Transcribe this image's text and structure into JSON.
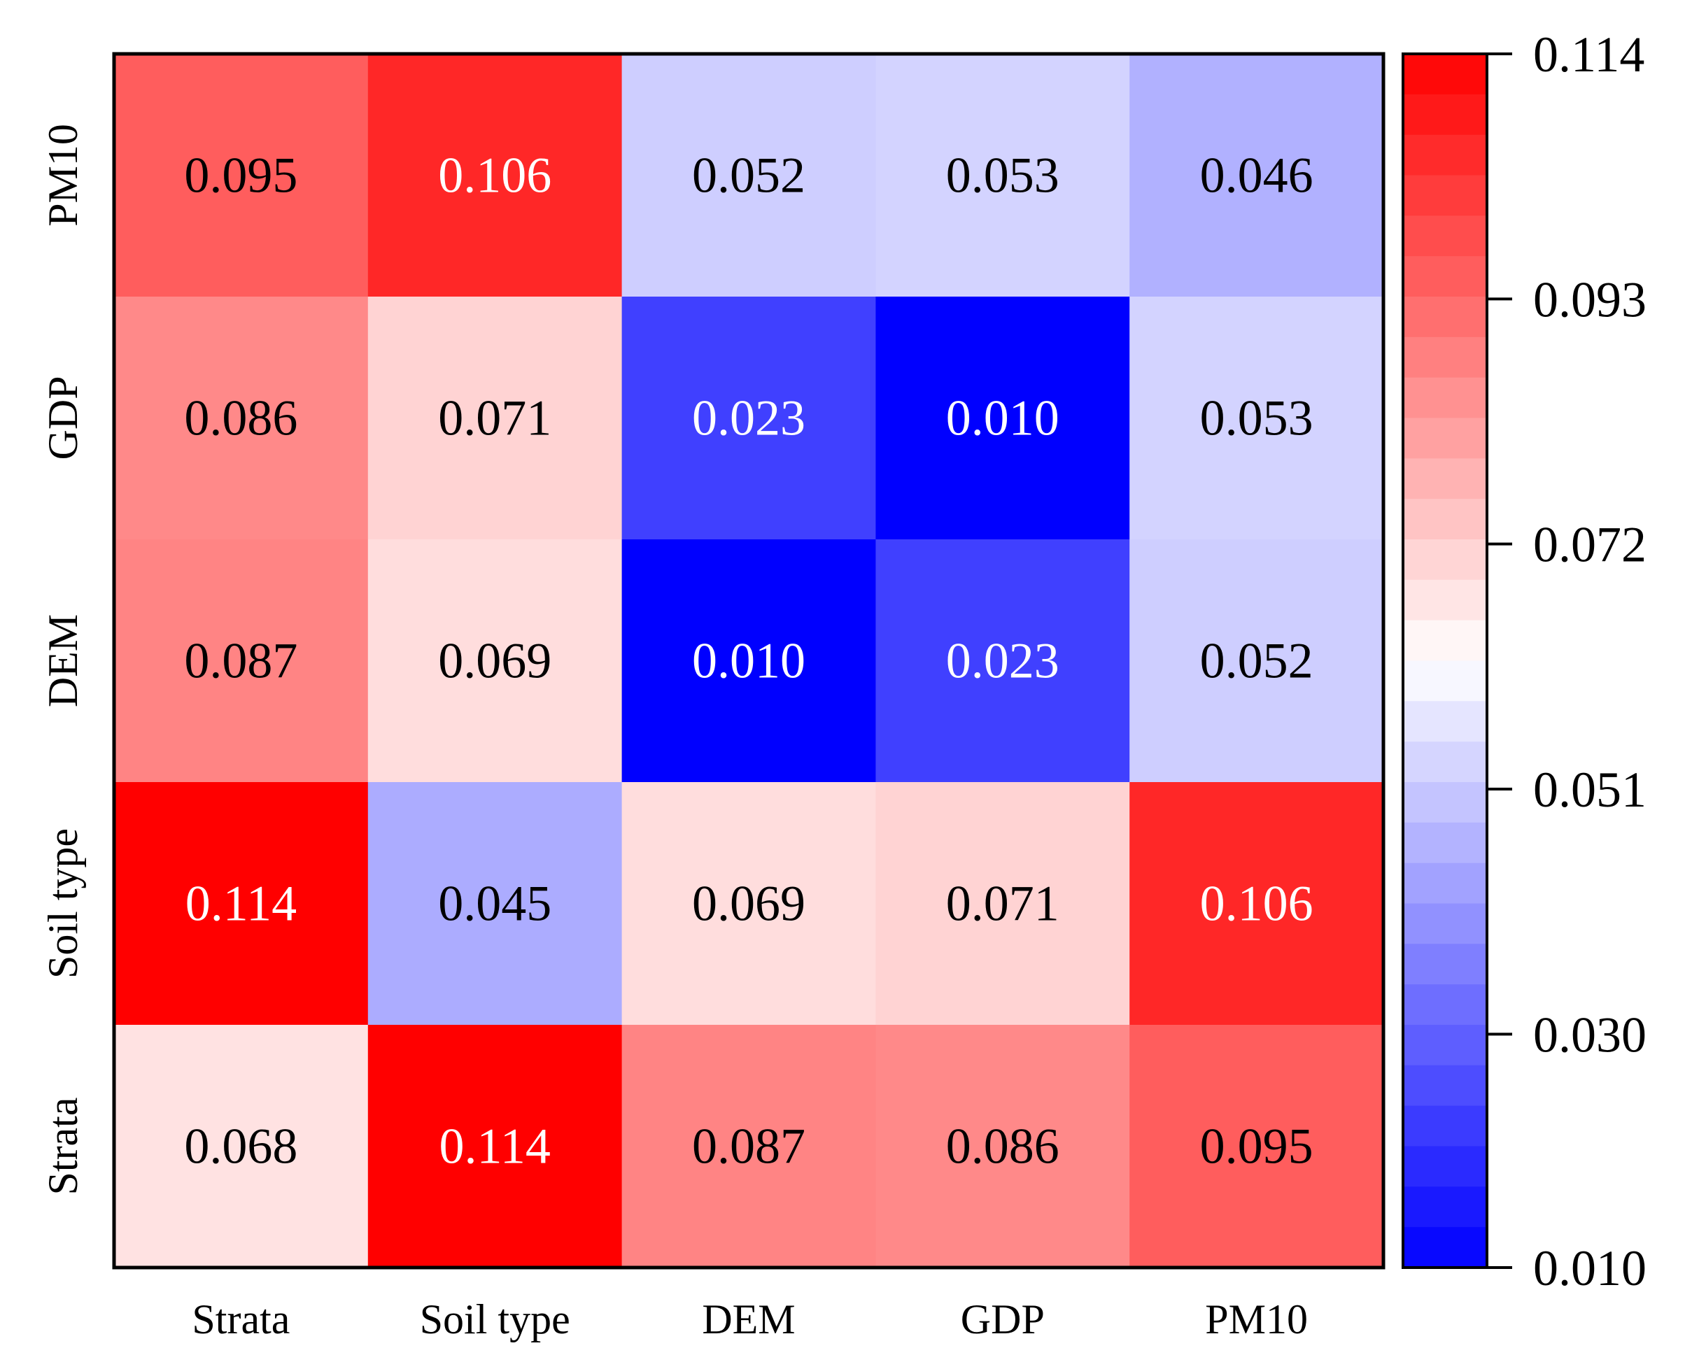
{
  "chart_data": {
    "type": "heatmap",
    "title": "",
    "xlabel": "",
    "ylabel": "",
    "x_categories": [
      "Strata",
      "Soil type",
      "DEM",
      "GDP",
      "PM10"
    ],
    "y_categories": [
      "PM10",
      "GDP",
      "DEM",
      "Soil type",
      "Strata"
    ],
    "values": [
      [
        0.095,
        0.106,
        0.052,
        0.053,
        0.046
      ],
      [
        0.086,
        0.071,
        0.023,
        0.01,
        0.053
      ],
      [
        0.087,
        0.069,
        0.01,
        0.023,
        0.052
      ],
      [
        0.114,
        0.045,
        0.069,
        0.071,
        0.106
      ],
      [
        0.068,
        0.114,
        0.087,
        0.086,
        0.095
      ]
    ],
    "value_labels": [
      [
        "0.095",
        "0.106",
        "0.052",
        "0.053",
        "0.046"
      ],
      [
        "0.086",
        "0.071",
        "0.023",
        "0.010",
        "0.053"
      ],
      [
        "0.087",
        "0.069",
        "0.010",
        "0.023",
        "0.052"
      ],
      [
        "0.114",
        "0.045",
        "0.069",
        "0.071",
        "0.106"
      ],
      [
        "0.068",
        "0.114",
        "0.087",
        "0.086",
        "0.095"
      ]
    ],
    "colorbar": {
      "min": 0.01,
      "max": 0.114,
      "ticks": [
        0.114,
        0.093,
        0.072,
        0.051,
        0.03,
        0.01
      ],
      "tick_labels": [
        "0.114",
        "0.093",
        "0.072",
        "0.051",
        "0.030",
        "0.010"
      ],
      "low_color": "#0000ff",
      "mid_color": "#ffffff",
      "high_color": "#ff0000",
      "mid_value": 0.062,
      "levels": 30
    }
  }
}
